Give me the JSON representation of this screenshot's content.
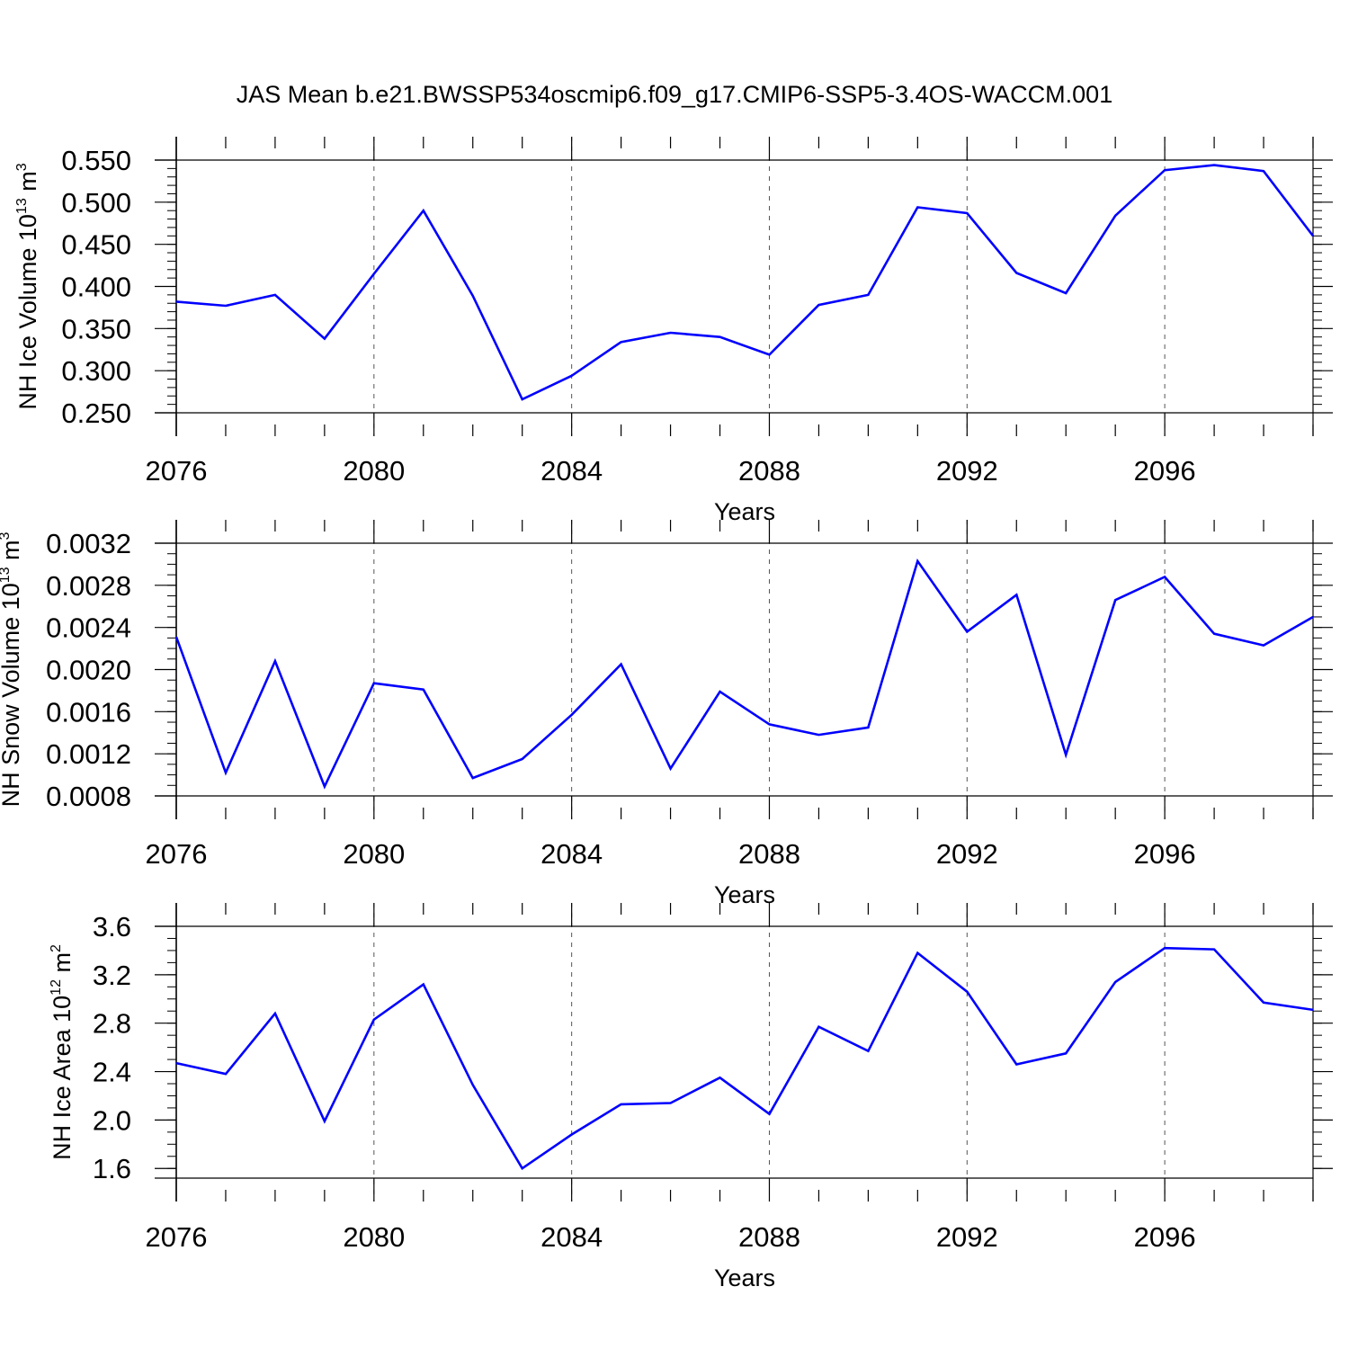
{
  "title": "JAS Mean b.e21.BWSSP534oscmip6.f09_g17.CMIP6-SSP5-3.4OS-WACCM.001",
  "colors": {
    "line": "#0000ff",
    "axis": "#000000",
    "grid": "#555555"
  },
  "chart_data": [
    {
      "type": "line",
      "ylabel": "NH Ice Volume 10",
      "ylabel_sup": "13",
      "ylabel_unit": "m",
      "ylabel_unit_sup": "3",
      "xlabel": "Years",
      "xlim": [
        2076,
        2099
      ],
      "ylim": [
        0.25,
        0.55
      ],
      "yticks": [
        0.25,
        0.3,
        0.35,
        0.4,
        0.45,
        0.5,
        0.55
      ],
      "ytick_labels": [
        "0.250",
        "0.300",
        "0.350",
        "0.400",
        "0.450",
        "0.500",
        "0.550"
      ],
      "yminor": 0.01,
      "xticks": [
        2076,
        2080,
        2084,
        2088,
        2092,
        2096
      ],
      "xtick_labels": [
        "2076",
        "2080",
        "2084",
        "2088",
        "2092",
        "2096"
      ],
      "grid_x": [
        2080,
        2084,
        2088,
        2092,
        2096
      ],
      "x": [
        2076,
        2077,
        2078,
        2079,
        2080,
        2081,
        2082,
        2083,
        2084,
        2085,
        2086,
        2087,
        2088,
        2089,
        2090,
        2091,
        2092,
        2093,
        2094,
        2095,
        2096,
        2097,
        2098,
        2099
      ],
      "series": [
        {
          "name": "NH Ice Volume",
          "values": [
            0.382,
            0.377,
            0.39,
            0.338,
            0.415,
            0.49,
            0.389,
            0.266,
            0.294,
            0.334,
            0.345,
            0.34,
            0.319,
            0.378,
            0.39,
            0.494,
            0.487,
            0.416,
            0.392,
            0.484,
            0.538,
            0.544,
            0.537,
            0.46
          ]
        }
      ]
    },
    {
      "type": "line",
      "ylabel": "NH Snow Volume 10",
      "ylabel_sup": "13",
      "ylabel_unit": "m",
      "ylabel_unit_sup": "3",
      "xlabel": "Years",
      "xlim": [
        2076,
        2099
      ],
      "ylim": [
        0.0008,
        0.0032
      ],
      "yticks": [
        0.0008,
        0.0012,
        0.0016,
        0.002,
        0.0024,
        0.0028,
        0.0032
      ],
      "ytick_labels": [
        "0.0008",
        "0.0012",
        "0.0016",
        "0.0020",
        "0.0024",
        "0.0028",
        "0.0032"
      ],
      "yminor": 0.0001,
      "xticks": [
        2076,
        2080,
        2084,
        2088,
        2092,
        2096
      ],
      "xtick_labels": [
        "2076",
        "2080",
        "2084",
        "2088",
        "2092",
        "2096"
      ],
      "grid_x": [
        2080,
        2084,
        2088,
        2092,
        2096
      ],
      "x": [
        2076,
        2077,
        2078,
        2079,
        2080,
        2081,
        2082,
        2083,
        2084,
        2085,
        2086,
        2087,
        2088,
        2089,
        2090,
        2091,
        2092,
        2093,
        2094,
        2095,
        2096,
        2097,
        2098,
        2099
      ],
      "series": [
        {
          "name": "NH Snow Volume",
          "values": [
            0.00231,
            0.00102,
            0.00208,
            0.00089,
            0.00187,
            0.00181,
            0.00097,
            0.00115,
            0.00157,
            0.00205,
            0.00106,
            0.00179,
            0.00148,
            0.00138,
            0.00145,
            0.00303,
            0.00236,
            0.00271,
            0.00119,
            0.00266,
            0.00288,
            0.00234,
            0.00223,
            0.0025
          ]
        }
      ]
    },
    {
      "type": "line",
      "ylabel": "NH Ice Area 10",
      "ylabel_sup": "12",
      "ylabel_unit": "m",
      "ylabel_unit_sup": "2",
      "xlabel": "Years",
      "xlim": [
        2076,
        2099
      ],
      "ylim": [
        1.52,
        3.6
      ],
      "yticks": [
        1.6,
        2.0,
        2.4,
        2.8,
        3.2,
        3.6
      ],
      "ytick_labels": [
        "1.6",
        "2.0",
        "2.4",
        "2.8",
        "3.2",
        "3.6"
      ],
      "yminor": 0.1,
      "xticks": [
        2076,
        2080,
        2084,
        2088,
        2092,
        2096
      ],
      "xtick_labels": [
        "2076",
        "2080",
        "2084",
        "2088",
        "2092",
        "2096"
      ],
      "grid_x": [
        2080,
        2084,
        2088,
        2092,
        2096
      ],
      "x": [
        2076,
        2077,
        2078,
        2079,
        2080,
        2081,
        2082,
        2083,
        2084,
        2085,
        2086,
        2087,
        2088,
        2089,
        2090,
        2091,
        2092,
        2093,
        2094,
        2095,
        2096,
        2097,
        2098,
        2099
      ],
      "series": [
        {
          "name": "NH Ice Area",
          "values": [
            2.47,
            2.38,
            2.88,
            1.99,
            2.83,
            3.12,
            2.29,
            1.6,
            1.88,
            2.13,
            2.14,
            2.35,
            2.05,
            2.77,
            2.57,
            3.38,
            3.06,
            2.46,
            2.55,
            3.14,
            3.42,
            3.41,
            2.97,
            2.91
          ]
        }
      ]
    }
  ]
}
